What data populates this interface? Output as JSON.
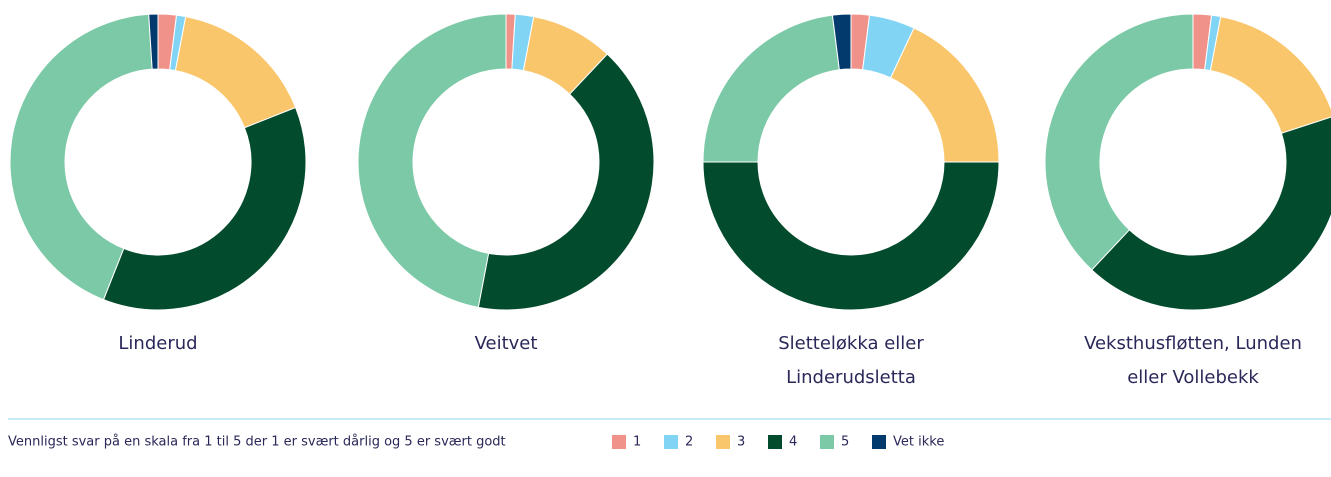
{
  "chart_data": [
    {
      "type": "pie",
      "title": "Linderud",
      "categories": [
        "1",
        "2",
        "3",
        "4",
        "5",
        "Vet ikke"
      ],
      "values": [
        2,
        1,
        16,
        37,
        43,
        1
      ],
      "colors": [
        "#f0918a",
        "#82d4f5",
        "#f9c66b",
        "#034b2d",
        "#7bc9a6",
        "#033a6e"
      ]
    },
    {
      "type": "pie",
      "title": "Veitvet",
      "categories": [
        "1",
        "2",
        "3",
        "4",
        "5"
      ],
      "values": [
        1,
        2,
        9,
        41,
        47
      ],
      "colors": [
        "#f0918a",
        "#82d4f5",
        "#f9c66b",
        "#034b2d",
        "#7bc9a6"
      ]
    },
    {
      "type": "pie",
      "title": "Sletteløkka eller Linderudsletta",
      "categories": [
        "1",
        "2",
        "3",
        "4",
        "5",
        "Vet ikke"
      ],
      "values": [
        2,
        5,
        18,
        50,
        23,
        2
      ],
      "colors": [
        "#f0918a",
        "#82d4f5",
        "#f9c66b",
        "#034b2d",
        "#7bc9a6",
        "#033a6e"
      ]
    },
    {
      "type": "pie",
      "title": "Veksthusfløtten, Lunden eller Vollebekk",
      "categories": [
        "1",
        "2",
        "3",
        "4",
        "5"
      ],
      "values": [
        2,
        1,
        17,
        42,
        38
      ],
      "colors": [
        "#f0918a",
        "#82d4f5",
        "#f9c66b",
        "#034b2d",
        "#7bc9a6"
      ]
    }
  ],
  "legend_title": "Vennligst svar på en skala fra 1 til 5 der 1 er svært dårlig og 5 er svært godt"
}
